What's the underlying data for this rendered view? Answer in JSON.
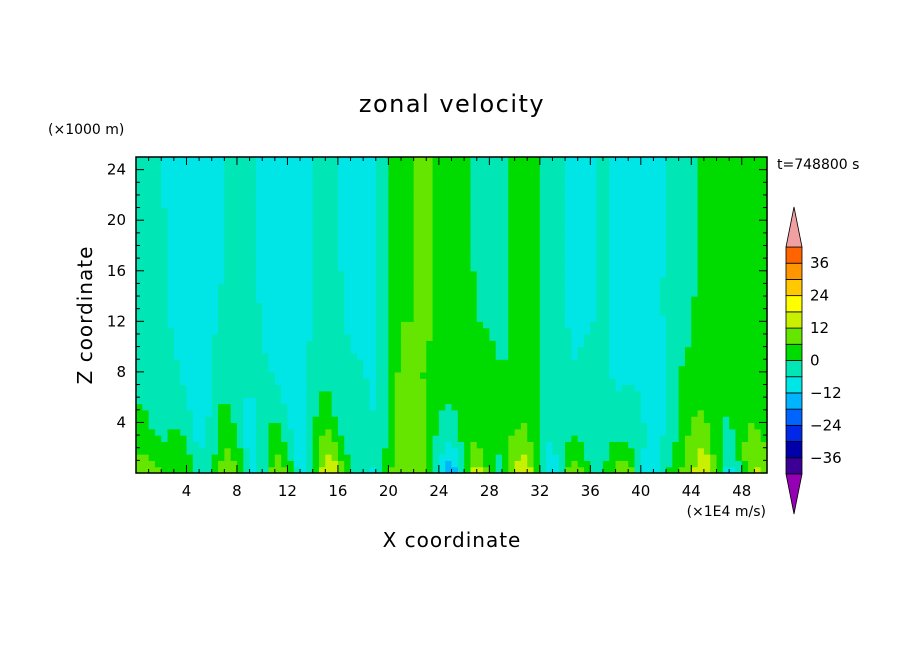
{
  "chart_data": {
    "type": "heatmap",
    "title": "zonal velocity",
    "xlabel": "X coordinate",
    "ylabel": "Z coordinate",
    "x_unit": "(×1E4 m/s)",
    "y_unit": "(×1000 m)",
    "time_label": "t=748800 s",
    "xlim": [
      0,
      50
    ],
    "ylim": [
      0,
      25
    ],
    "x_ticks": [
      4,
      8,
      12,
      16,
      20,
      24,
      28,
      32,
      36,
      40,
      44,
      48
    ],
    "y_ticks": [
      4,
      8,
      12,
      16,
      20,
      24
    ],
    "colorbar": {
      "levels": [
        -42,
        -36,
        -30,
        -24,
        -18,
        -12,
        -6,
        0,
        6,
        12,
        18,
        24,
        30,
        36,
        42
      ],
      "labels": [
        "36",
        "24",
        "12",
        "0",
        "-12",
        "-24",
        "-36"
      ],
      "label_values": [
        36,
        24,
        12,
        0,
        -12,
        -24,
        -36
      ],
      "colors": [
        "#800080",
        "#3c0096",
        "#0000aa",
        "#0028e6",
        "#0064ff",
        "#00b4ff",
        "#00e6e6",
        "#00e6b4",
        "#00dc00",
        "#64e600",
        "#c8f000",
        "#ffff00",
        "#ffc800",
        "#ff9600",
        "#ff6400",
        "#ff1e00",
        "#e60000"
      ],
      "extend_low_color": "#9600b4",
      "extend_high_color": "#f0a0a0"
    },
    "column_pattern": {
      "x_centers": [
        1,
        3,
        5,
        7,
        9,
        11,
        13,
        15,
        17,
        19,
        21,
        23,
        25,
        27,
        29,
        31,
        33,
        35,
        37,
        39,
        41,
        43,
        45,
        47,
        49
      ],
      "upper_value": [
        -3,
        -8,
        -10,
        -6,
        -4,
        -10,
        -9,
        -4,
        -8,
        -6,
        5,
        7,
        4,
        -1,
        -1,
        2,
        -3,
        -9,
        -5,
        -11,
        -8,
        -3,
        1,
        3,
        4
      ],
      "lower_value": [
        6,
        10,
        -6,
        14,
        -10,
        12,
        -8,
        16,
        4,
        -10,
        18,
        4,
        -14,
        12,
        2,
        16,
        -12,
        12,
        -4,
        14,
        -16,
        10,
        16,
        -6,
        10
      ]
    }
  }
}
